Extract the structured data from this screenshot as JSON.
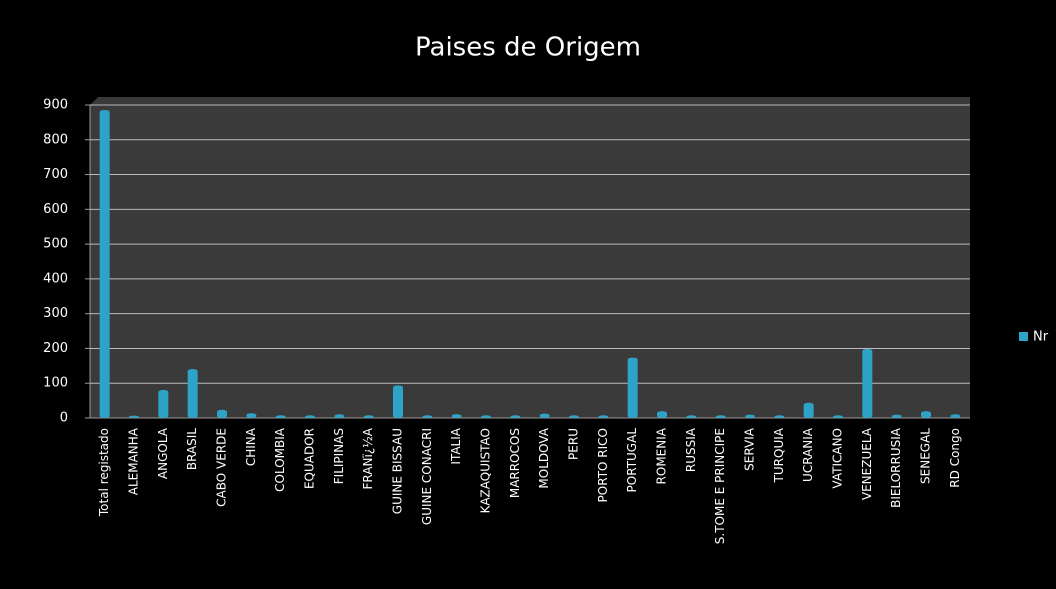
{
  "chart_data": {
    "type": "bar",
    "title": "Paises de Origem",
    "categories": [
      "Total registado",
      "ALEMANHA",
      "ANGOLA",
      "BRASIL",
      "CABO VERDE",
      "CHINA",
      "COLOMBIA",
      "EQUADOR",
      "FILIPINAS",
      "FRANï¿½A",
      "GUINE BISSAU",
      "GUINE CONACRI",
      "ITALIA",
      "KAZAQUISTAO",
      "MARROCOS",
      "MOLDOVA",
      "PERU",
      "PORTO RICO",
      "PORTUGAL",
      "ROMENIA",
      "RUSSIA",
      "S.TOME E PRINCIPE",
      "SERVIA",
      "TURQUIA",
      "UCRANIA",
      "VATICANO",
      "VENEZUELA",
      "BIELORRUSIA",
      "SENEGAL",
      "RD Congo"
    ],
    "series": [
      {
        "name": "Nr",
        "color": "#2ea3c8",
        "values": [
          880,
          1,
          75,
          135,
          18,
          8,
          2,
          2,
          5,
          2,
          88,
          2,
          5,
          2,
          2,
          7,
          2,
          2,
          168,
          14,
          2,
          2,
          4,
          2,
          38,
          2,
          193,
          4,
          14,
          5
        ]
      }
    ],
    "ylim": [
      0,
      900
    ],
    "yticks": [
      0,
      100,
      200,
      300,
      400,
      500,
      600,
      700,
      800,
      900
    ],
    "grid": true,
    "legend": "right"
  }
}
